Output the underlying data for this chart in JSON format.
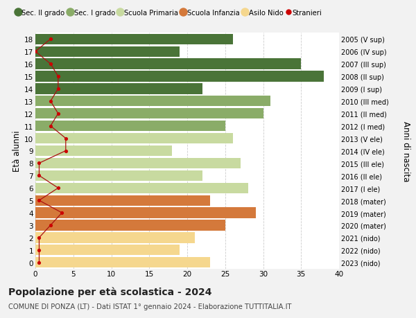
{
  "ages": [
    0,
    1,
    2,
    3,
    4,
    5,
    6,
    7,
    8,
    9,
    10,
    11,
    12,
    13,
    14,
    15,
    16,
    17,
    18
  ],
  "right_labels": [
    "2023 (nido)",
    "2022 (nido)",
    "2021 (nido)",
    "2020 (mater)",
    "2019 (mater)",
    "2018 (mater)",
    "2017 (I ele)",
    "2016 (II ele)",
    "2015 (III ele)",
    "2014 (IV ele)",
    "2013 (V ele)",
    "2012 (I med)",
    "2011 (II med)",
    "2010 (III med)",
    "2009 (I sup)",
    "2008 (II sup)",
    "2007 (III sup)",
    "2006 (IV sup)",
    "2005 (V sup)"
  ],
  "bar_values": [
    23,
    19,
    21,
    25,
    29,
    23,
    28,
    22,
    27,
    18,
    26,
    25,
    30,
    31,
    22,
    38,
    35,
    19,
    26
  ],
  "bar_colors": [
    "#f5d78e",
    "#f5d78e",
    "#f5d78e",
    "#d4793b",
    "#d4793b",
    "#d4793b",
    "#c8daa0",
    "#c8daa0",
    "#c8daa0",
    "#c8daa0",
    "#c8daa0",
    "#8aac68",
    "#8aac68",
    "#8aac68",
    "#4a7438",
    "#4a7438",
    "#4a7438",
    "#4a7438",
    "#4a7438"
  ],
  "stranieri_values": [
    0.5,
    0.5,
    0.5,
    2.0,
    3.5,
    0.5,
    3.0,
    0.5,
    0.5,
    4.0,
    4.0,
    2.0,
    3.0,
    2.0,
    3.0,
    3.0,
    2.0,
    0.0,
    2.0
  ],
  "title": "Popolazione per età scolastica - 2024",
  "subtitle": "COMUNE DI PONZA (LT) - Dati ISTAT 1° gennaio 2024 - Elaborazione TUTTITALIA.IT",
  "ylabel": "Età alunni",
  "right_ylabel": "Anni di nascita",
  "xlim": [
    0,
    40
  ],
  "xticks": [
    0,
    5,
    10,
    15,
    20,
    25,
    30,
    35,
    40
  ],
  "legend_labels": [
    "Sec. II grado",
    "Sec. I grado",
    "Scuola Primaria",
    "Scuola Infanzia",
    "Asilo Nido",
    "Stranieri"
  ],
  "legend_colors": [
    "#4a7438",
    "#8aac68",
    "#c8daa0",
    "#d4793b",
    "#f5d78e",
    "#cc0000"
  ],
  "background_color": "#f2f2f2",
  "bar_background": "#ffffff",
  "grid_color": "#cccccc"
}
